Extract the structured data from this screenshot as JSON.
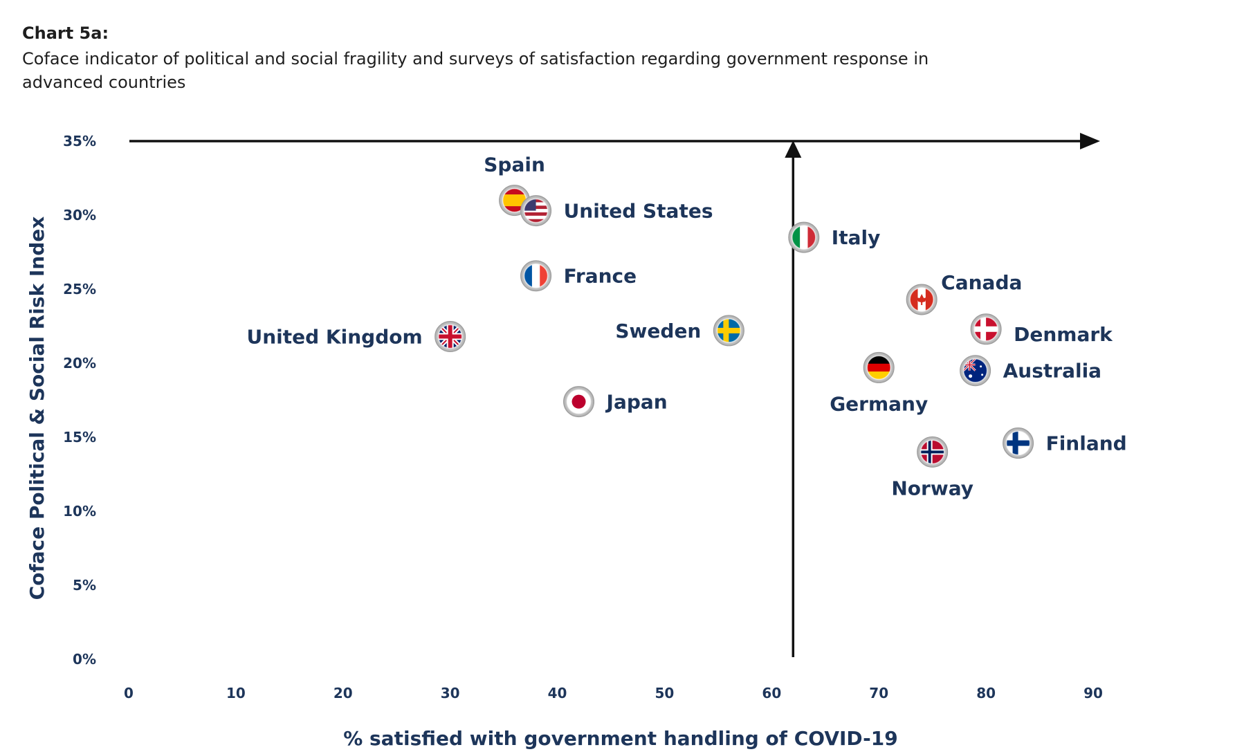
{
  "heading": {
    "label": "Chart 5a:",
    "subtitle": "Coface indicator of political and social fragility and surveys of satisfaction regarding government response in advanced countries"
  },
  "colors": {
    "text": "#1d355a",
    "axis": "#111111"
  },
  "chart_data": {
    "type": "scatter",
    "xlabel": "% satisfied with government handling of COVID-19",
    "ylabel": "Coface Political & Social Risk Index",
    "xlim": [
      0,
      90
    ],
    "ylim": [
      0,
      35
    ],
    "xticks": [
      "0",
      "10",
      "20",
      "30",
      "40",
      "50",
      "60",
      "70",
      "80",
      "90"
    ],
    "yticks": [
      "0%",
      "5%",
      "10%",
      "15%",
      "20%",
      "25%",
      "30%",
      "35%"
    ],
    "grid": false,
    "divider_x": 62,
    "points": [
      {
        "label": "Spain",
        "x": 36,
        "y": 31.0,
        "label_pos": "above",
        "icon": "spain-flag-icon"
      },
      {
        "label": "United States",
        "x": 38,
        "y": 30.3,
        "label_pos": "right",
        "icon": "us-flag-icon"
      },
      {
        "label": "Italy",
        "x": 63,
        "y": 28.5,
        "label_pos": "right",
        "icon": "italy-flag-icon"
      },
      {
        "label": "France",
        "x": 38,
        "y": 25.9,
        "label_pos": "right",
        "icon": "france-flag-icon"
      },
      {
        "label": "Canada",
        "x": 74,
        "y": 24.3,
        "label_pos": "above-right",
        "icon": "canada-flag-icon"
      },
      {
        "label": "Denmark",
        "x": 80,
        "y": 22.3,
        "label_pos": "below-right",
        "icon": "denmark-flag-icon"
      },
      {
        "label": "Sweden",
        "x": 56,
        "y": 22.2,
        "label_pos": "left",
        "icon": "sweden-flag-icon"
      },
      {
        "label": "United Kingdom",
        "x": 30,
        "y": 21.8,
        "label_pos": "left",
        "icon": "uk-flag-icon"
      },
      {
        "label": "Germany",
        "x": 70,
        "y": 19.7,
        "label_pos": "below",
        "icon": "germany-flag-icon"
      },
      {
        "label": "Australia",
        "x": 79,
        "y": 19.5,
        "label_pos": "right",
        "icon": "australia-flag-icon"
      },
      {
        "label": "Japan",
        "x": 42,
        "y": 17.4,
        "label_pos": "right",
        "icon": "japan-flag-icon"
      },
      {
        "label": "Finland",
        "x": 83,
        "y": 14.6,
        "label_pos": "right",
        "icon": "finland-flag-icon"
      },
      {
        "label": "Norway",
        "x": 75,
        "y": 14.0,
        "label_pos": "below",
        "icon": "norway-flag-icon"
      }
    ]
  }
}
